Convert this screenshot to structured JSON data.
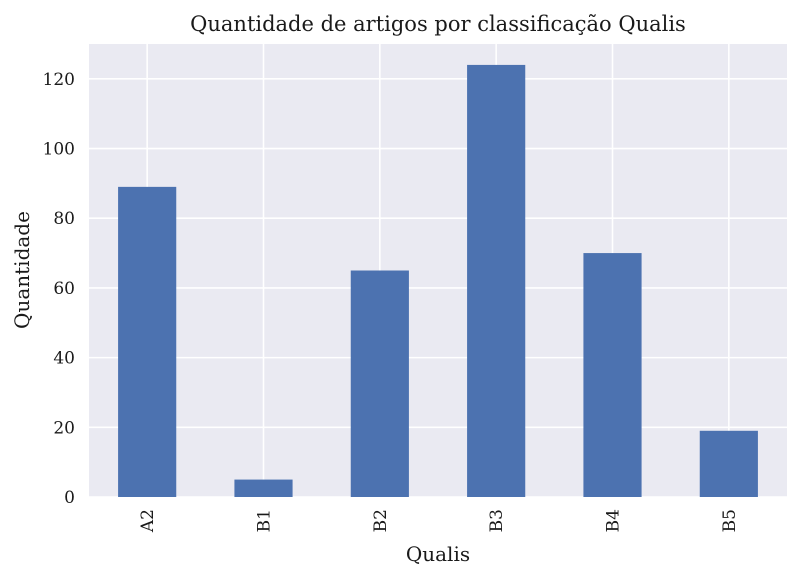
{
  "chart_data": {
    "type": "bar",
    "title": "Quantidade de artigos por classificação Qualis",
    "xlabel": "Qualis",
    "ylabel": "Quantidade",
    "categories": [
      "A2",
      "B1",
      "B2",
      "B3",
      "B4",
      "B5"
    ],
    "values": [
      89,
      5,
      65,
      124,
      70,
      19
    ],
    "ylim": [
      0,
      130
    ],
    "yticks": [
      0,
      20,
      40,
      60,
      80,
      100,
      120
    ],
    "grid": true,
    "bar_color": "#4c72b0",
    "background_color": "#eaeaf2",
    "grid_color": "#ffffff"
  }
}
